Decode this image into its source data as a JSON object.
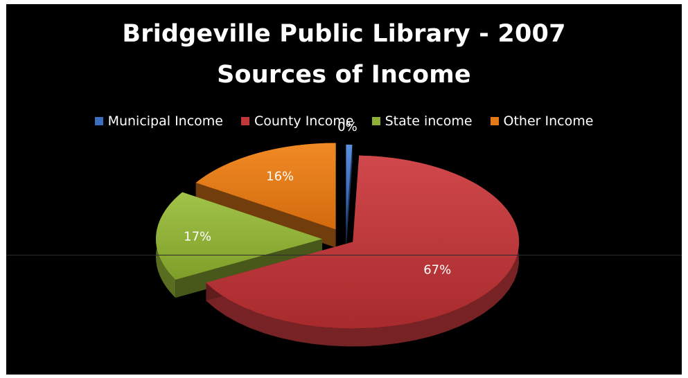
{
  "chart_data": {
    "type": "pie",
    "title": "Bridgeville Public Library - 2007",
    "subtitle": "Sources of Income",
    "legend_position": "top",
    "categories": [
      "Municipal Income",
      "County Income",
      "State income",
      "Other Income"
    ],
    "values": [
      0,
      67,
      17,
      16
    ],
    "labels": [
      "0%",
      "67%",
      "17%",
      "16%"
    ],
    "colors": [
      "#3a6fc0",
      "#c0373a",
      "#8fb035",
      "#e47a17"
    ],
    "exploded": true,
    "three_d": true
  }
}
